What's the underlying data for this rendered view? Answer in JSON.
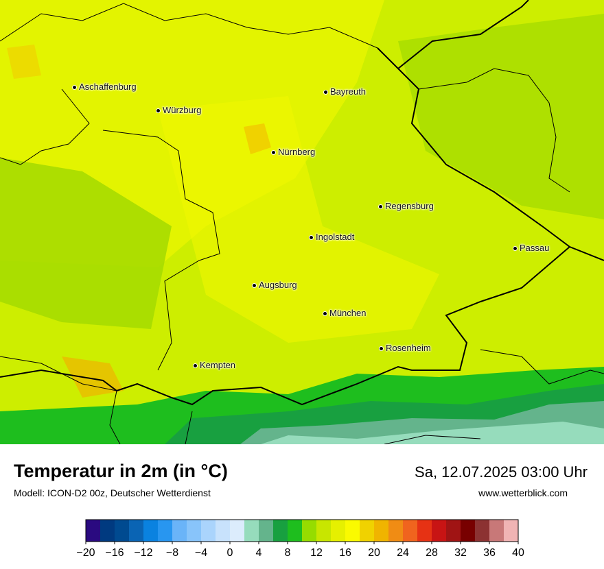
{
  "header": {
    "title": "Temperatur in 2m (in °C)",
    "model": "Modell: ICON-D2 00z, Deutscher Wetterdienst",
    "datetime": "Sa, 12.07.2025 03:00 Uhr",
    "website": "www.wetterblick.com"
  },
  "cities": [
    "Aschaffenburg",
    "Würzburg",
    "Bayreuth",
    "Nürnberg",
    "Regensburg",
    "Ingolstadt",
    "Passau",
    "Augsburg",
    "München",
    "Rosenheim",
    "Kempten"
  ],
  "colorbar": {
    "lim": [
      -20,
      40
    ],
    "colors": [
      "#2a0a80",
      "#003a80",
      "#004a90",
      "#0a64b4",
      "#0a82e0",
      "#2896f0",
      "#6ab4f8",
      "#88c4fa",
      "#aad4fc",
      "#c8e2fc",
      "#dcecfc",
      "#96dcbc",
      "#64b48c",
      "#18a040",
      "#1ebe1e",
      "#96dc00",
      "#c8e600",
      "#e6f000",
      "#fafa00",
      "#f0d200",
      "#f0b400",
      "#f08c14",
      "#f0641e",
      "#e63214",
      "#c81414",
      "#a01414",
      "#780000",
      "#8c3232",
      "#c87878",
      "#f0b4b4"
    ],
    "ticks": [
      {
        "value": -20,
        "label": "−20"
      },
      {
        "value": -16,
        "label": "−16"
      },
      {
        "value": -12,
        "label": "−12"
      },
      {
        "value": -8,
        "label": "−8"
      },
      {
        "value": -4,
        "label": "−4"
      },
      0,
      4,
      8,
      12,
      16,
      20,
      24,
      28,
      32,
      36,
      40
    ]
  }
}
